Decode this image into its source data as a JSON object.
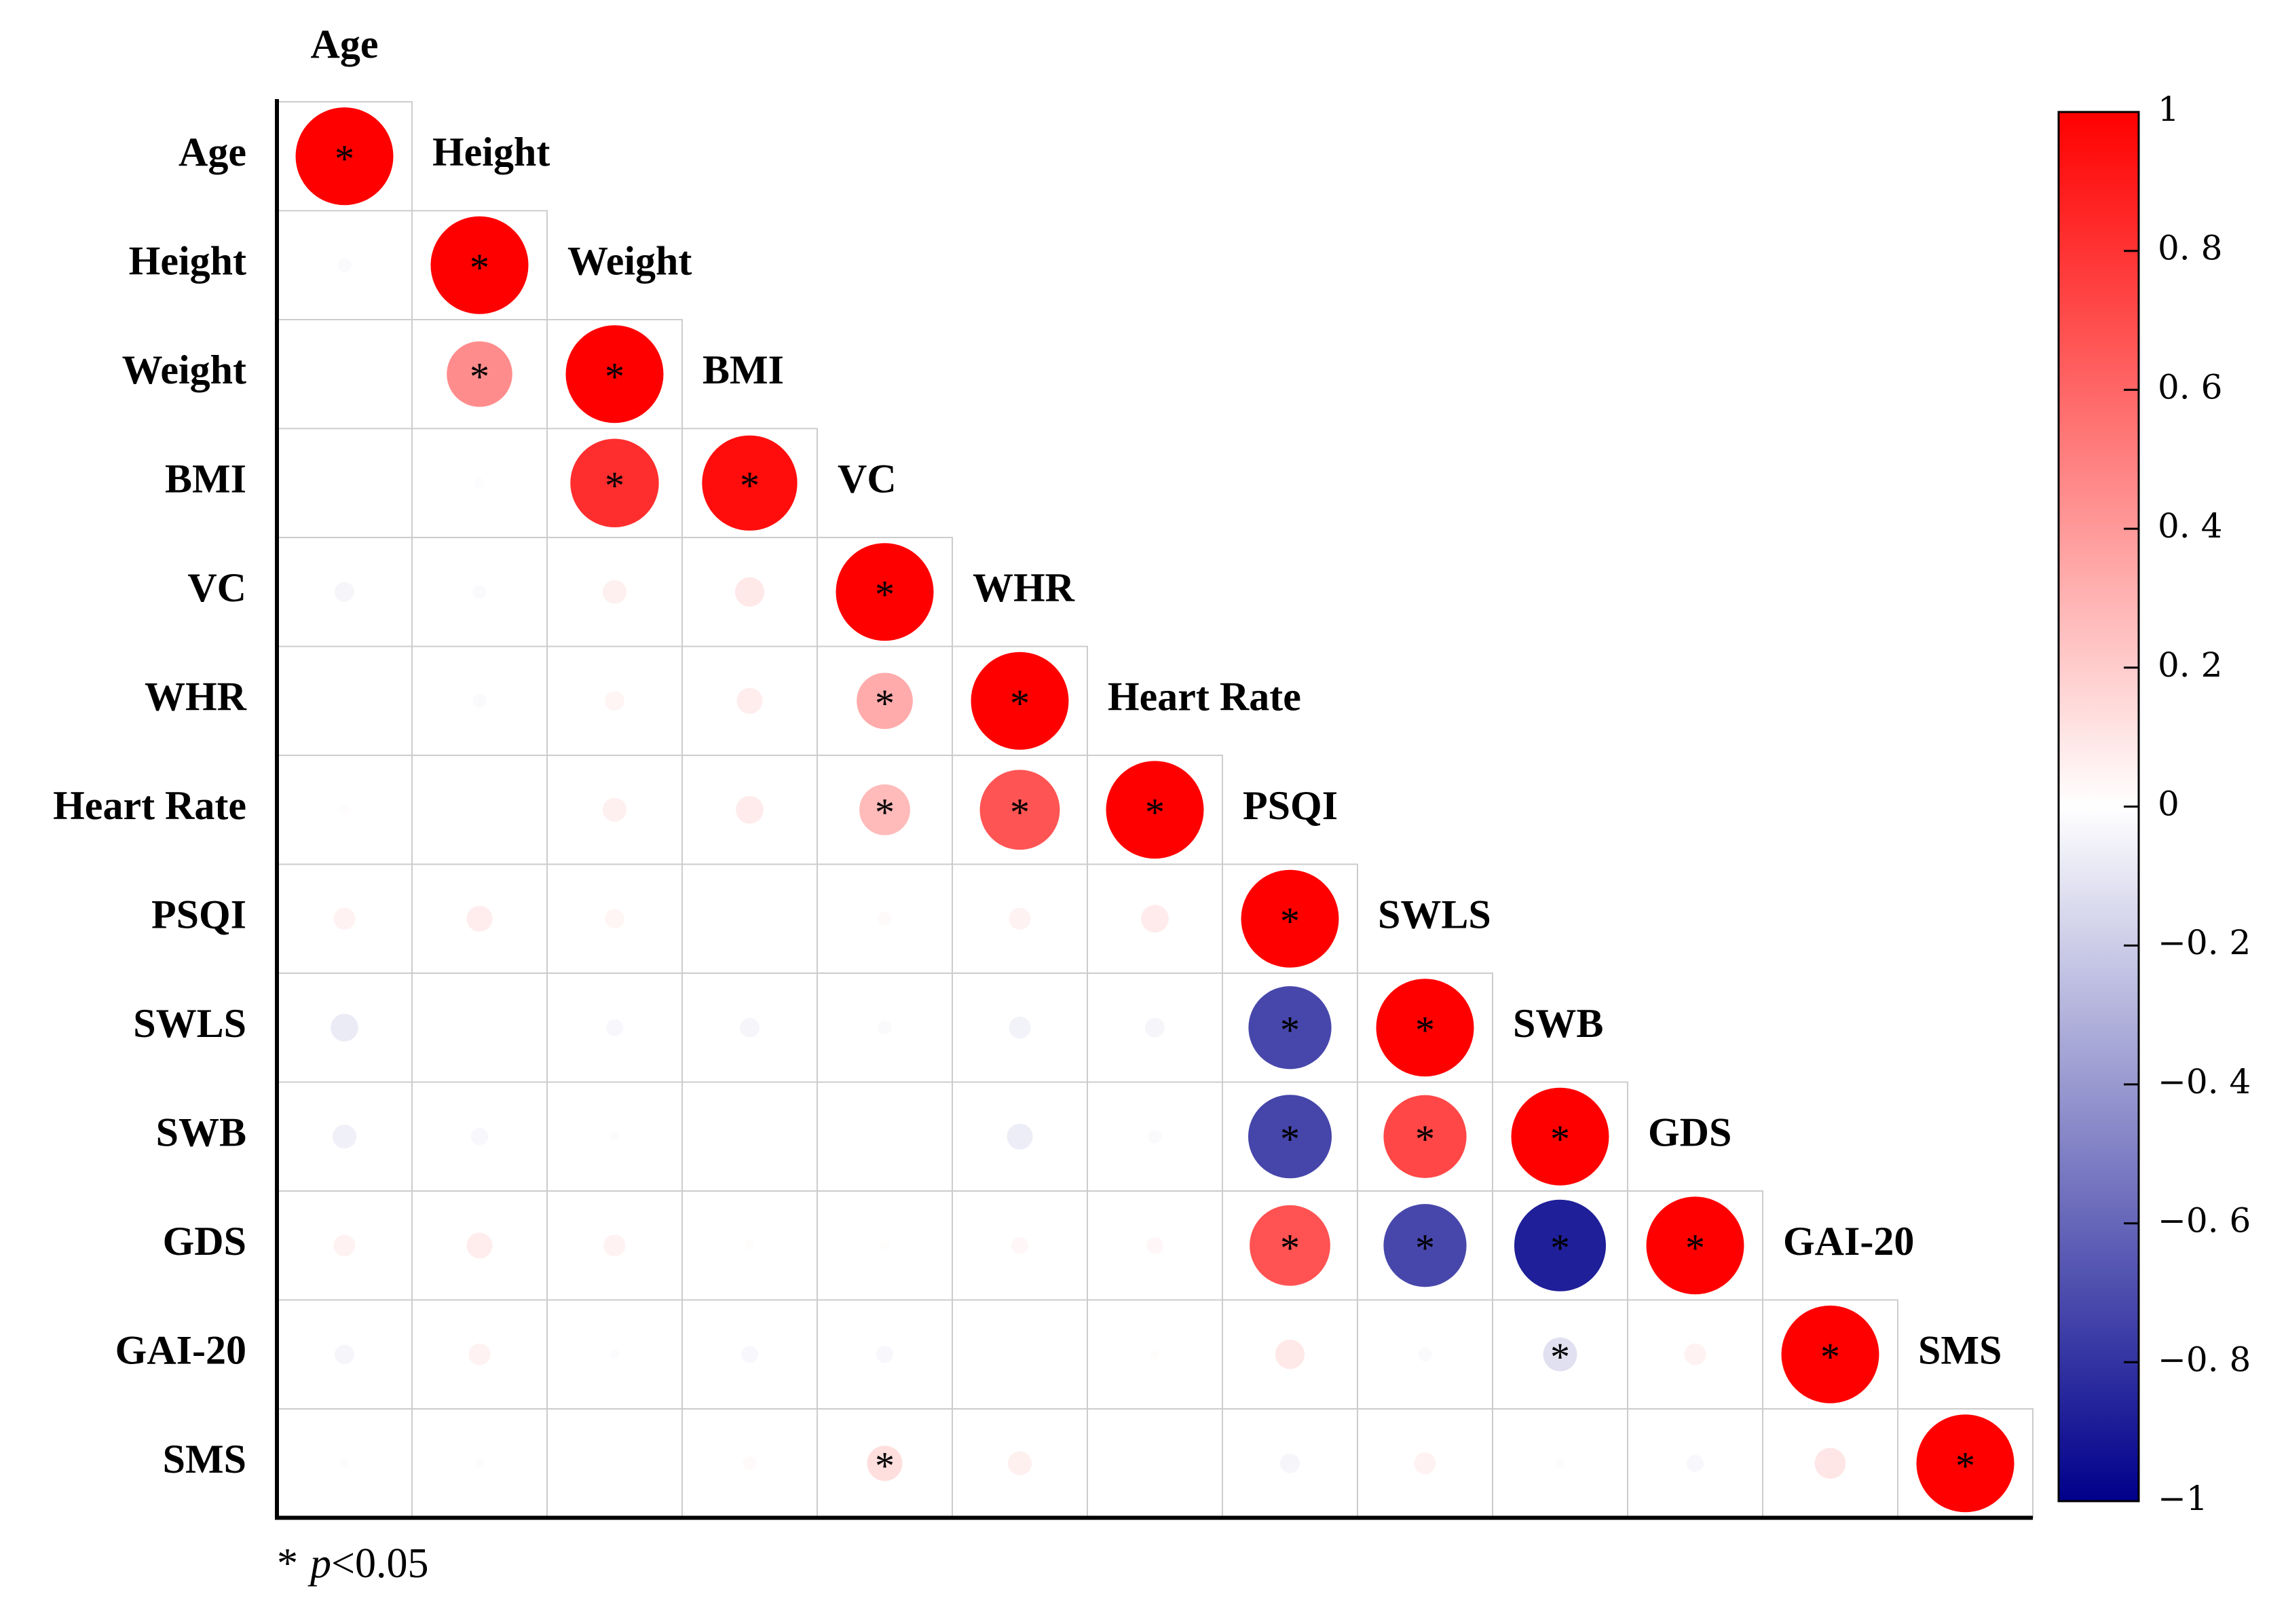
{
  "chart_data": {
    "type": "corrplot",
    "variables": [
      "Age",
      "Height",
      "Weight",
      "BMI",
      "VC",
      "WHR",
      "Heart Rate",
      "PSQI",
      "SWLS",
      "SWB",
      "GDS",
      "GAI-20",
      "SMS"
    ],
    "matrix": [
      [
        1
      ],
      [
        -0.02,
        1
      ],
      [
        0.0,
        0.45,
        1
      ],
      [
        0.0,
        -0.01,
        0.82,
        0.95
      ],
      [
        -0.04,
        -0.02,
        0.06,
        0.09,
        1
      ],
      [
        0.0,
        -0.02,
        0.04,
        0.07,
        0.33,
        1
      ],
      [
        0.01,
        0.0,
        0.06,
        0.08,
        0.27,
        0.67,
        1
      ],
      [
        0.05,
        0.07,
        0.04,
        0.0,
        0.02,
        0.05,
        0.08,
        1
      ],
      [
        -0.08,
        0.0,
        -0.03,
        -0.04,
        -0.02,
        -0.05,
        -0.04,
        -0.72,
        1
      ],
      [
        -0.06,
        -0.03,
        -0.01,
        0.0,
        0.0,
        -0.07,
        -0.02,
        -0.73,
        0.72,
        1
      ],
      [
        0.05,
        0.07,
        0.05,
        0.01,
        0.01,
        0.03,
        0.03,
        0.68,
        -0.72,
        -0.88,
        1
      ],
      [
        -0.04,
        0.05,
        -0.01,
        -0.03,
        -0.03,
        0.0,
        0.01,
        0.09,
        -0.02,
        -0.12,
        0.05,
        1
      ],
      [
        -0.01,
        -0.01,
        0.0,
        0.02,
        0.13,
        0.06,
        0.0,
        -0.04,
        0.05,
        -0.01,
        -0.03,
        0.1,
        1
      ]
    ],
    "significant": [
      [
        true
      ],
      [
        false,
        true
      ],
      [
        false,
        true,
        true
      ],
      [
        false,
        false,
        true,
        true
      ],
      [
        false,
        false,
        false,
        false,
        true
      ],
      [
        false,
        false,
        false,
        false,
        true,
        true
      ],
      [
        false,
        false,
        false,
        false,
        true,
        true,
        true
      ],
      [
        false,
        false,
        false,
        false,
        false,
        false,
        false,
        true
      ],
      [
        false,
        false,
        false,
        false,
        false,
        false,
        false,
        true,
        true
      ],
      [
        false,
        false,
        false,
        false,
        false,
        false,
        false,
        true,
        true,
        true
      ],
      [
        false,
        false,
        false,
        false,
        false,
        false,
        false,
        true,
        true,
        true,
        true
      ],
      [
        false,
        false,
        false,
        false,
        false,
        false,
        false,
        false,
        false,
        true,
        false,
        true
      ],
      [
        false,
        false,
        false,
        false,
        true,
        false,
        false,
        false,
        false,
        false,
        false,
        false,
        true
      ]
    ],
    "sig_marker": "*",
    "colors": {
      "positive": "#ff0000",
      "zero": "#ffffff",
      "negative": "#00008b"
    },
    "clim": [
      -1,
      1
    ],
    "cticks": [
      {
        "value": -1,
        "label": "−1"
      },
      {
        "value": -0.8,
        "label": "−0. 8"
      },
      {
        "value": -0.6,
        "label": "−0. 6"
      },
      {
        "value": -0.4,
        "label": "−0. 4"
      },
      {
        "value": -0.2,
        "label": "−0. 2"
      },
      0,
      {
        "value": 0.2,
        "label": "0. 2"
      },
      {
        "value": 0.4,
        "label": "0. 4"
      },
      {
        "value": 0.6,
        "label": "0. 6"
      },
      {
        "value": 0.8,
        "label": "0. 8"
      },
      1
    ],
    "note": [
      "*",
      "p",
      "<0.05"
    ]
  }
}
